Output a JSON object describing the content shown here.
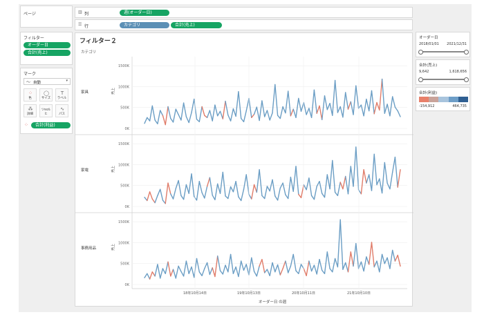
{
  "shelves": {
    "pages_label": "ページ",
    "columns_label": "列",
    "columns_pill": "週(オーダー日)",
    "rows_label": "行",
    "rows_pills": [
      "カテゴリ",
      "合計(売上)"
    ]
  },
  "filters": {
    "title": "フィルター",
    "items": [
      "オーダー日",
      "合計(売上)"
    ]
  },
  "marks": {
    "title": "マーク",
    "type_value": "自動",
    "buttons": [
      "色",
      "サイズ",
      "ラベル",
      "詳細",
      "ツールヒ",
      "パス"
    ],
    "color_pill": "合計(利益)"
  },
  "chart_title": "フィルター２",
  "column_header": "カテゴリ",
  "cards": {
    "date": {
      "title": "オーダー日",
      "min": "2018/01/01",
      "max": "2021/12/31"
    },
    "sales": {
      "title": "合計(売上)",
      "min": "9,642",
      "max": "1,618,656"
    },
    "profit": {
      "title": "合計(利益)",
      "min": "-154,912",
      "max": "464,735",
      "colors": [
        "#e8806a",
        "#c9a39a",
        "#a8c4dd",
        "#6d9ec8",
        "#2f5f92"
      ]
    }
  },
  "chart_data": {
    "type": "line",
    "x_title": "オーダー日 の週",
    "x_ticks": [
      "18年10月14日",
      "19年10月13日",
      "20年10月11日",
      "21年10月10日"
    ],
    "y_title": "売上",
    "y_ticks": [
      "0K",
      "500K",
      "1000K",
      "1500K"
    ],
    "ylim": [
      0,
      1618656
    ],
    "panels": [
      {
        "category": "家具",
        "values": [
          120,
          260,
          180,
          540,
          200,
          110,
          430,
          310,
          90,
          520,
          240,
          150,
          460,
          330,
          200,
          610,
          280,
          140,
          380,
          700,
          220,
          160,
          520,
          310,
          260,
          430,
          180,
          560,
          300,
          410,
          230,
          650,
          320,
          180,
          470,
          290,
          880,
          240,
          160,
          420,
          720,
          260,
          340,
          510,
          190,
          660,
          280,
          430,
          200,
          370,
          1050,
          310,
          240,
          520,
          370,
          890,
          300,
          460,
          260,
          720,
          410,
          620,
          330,
          480,
          260,
          920,
          360,
          540,
          210,
          780,
          450,
          600,
          310,
          1150,
          380,
          520,
          270,
          860,
          460,
          640,
          330,
          1020,
          480,
          560,
          300,
          700,
          420,
          900,
          350,
          620,
          440,
          1180,
          360,
          580,
          300,
          760,
          510,
          420,
          280
        ],
        "neg": [
          7,
          8,
          22,
          23,
          30,
          41,
          56,
          66,
          67,
          78,
          88,
          89,
          90
        ]
      },
      {
        "category": "家電",
        "values": [
          220,
          140,
          350,
          180,
          90,
          260,
          410,
          150,
          70,
          560,
          300,
          180,
          430,
          620,
          260,
          170,
          520,
          310,
          780,
          240,
          150,
          600,
          330,
          200,
          480,
          690,
          270,
          160,
          540,
          310,
          820,
          250,
          190,
          470,
          350,
          600,
          230,
          140,
          410,
          760,
          290,
          180,
          520,
          340,
          880,
          260,
          190,
          480,
          370,
          640,
          250,
          150,
          440,
          560,
          280,
          190,
          700,
          360,
          960,
          290,
          210,
          520,
          400,
          680,
          260,
          170,
          480,
          600,
          310,
          220,
          760,
          420,
          1100,
          340,
          260,
          580,
          420,
          720,
          300,
          960,
          480,
          1420,
          400,
          300,
          880,
          560,
          760,
          380,
          1250,
          520,
          660,
          320,
          1050,
          560,
          420,
          820,
          1180,
          460,
          880
        ],
        "neg": [
          1,
          2,
          3,
          8,
          9,
          24,
          41,
          42,
          59,
          60,
          75,
          76,
          83,
          84,
          97
        ]
      },
      {
        "category": "事務用品",
        "values": [
          160,
          260,
          130,
          300,
          200,
          480,
          150,
          380,
          260,
          540,
          200,
          360,
          150,
          440,
          310,
          200,
          560,
          260,
          420,
          170,
          620,
          300,
          210,
          380,
          520,
          240,
          400,
          190,
          680,
          330,
          250,
          460,
          300,
          720,
          260,
          420,
          190,
          560,
          340,
          480,
          230,
          640,
          310,
          200,
          440,
          600,
          280,
          360,
          210,
          520,
          300,
          470,
          230,
          380,
          560,
          280,
          440,
          720,
          330,
          260,
          480,
          380,
          210,
          560,
          320,
          460,
          250,
          600,
          340,
          260,
          780,
          380,
          300,
          620,
          420,
          1550,
          360,
          520,
          300,
          780,
          440,
          980,
          380,
          540,
          320,
          660,
          480,
          1010,
          420,
          560,
          300,
          720,
          500,
          640,
          380,
          820,
          560,
          700,
          440
        ],
        "neg": [
          2,
          3,
          9,
          10,
          26,
          27,
          44,
          45,
          52,
          53,
          61,
          62,
          78,
          79,
          86,
          87,
          96,
          97
        ]
      }
    ]
  }
}
